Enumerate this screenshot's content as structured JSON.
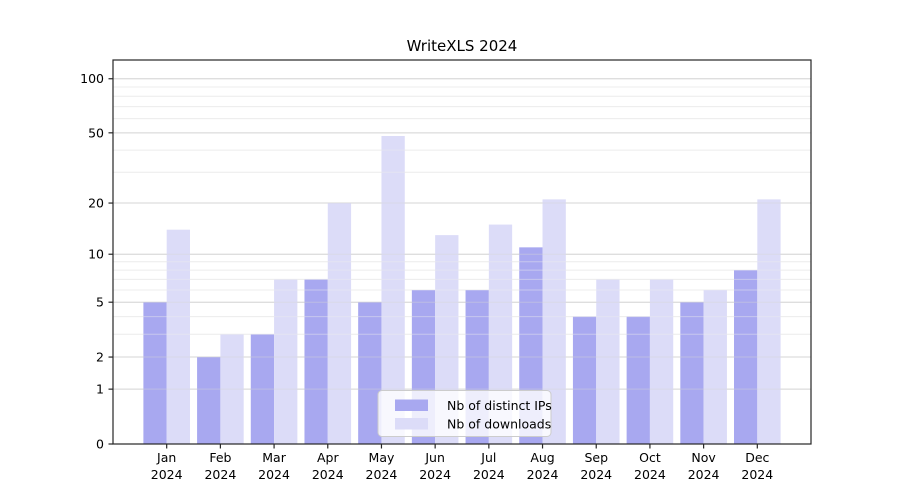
{
  "title": "WriteXLS 2024",
  "chart_data": {
    "type": "bar",
    "title": "WriteXLS 2024",
    "categories": [
      "Jan",
      "Feb",
      "Mar",
      "Apr",
      "May",
      "Jun",
      "Jul",
      "Aug",
      "Sep",
      "Oct",
      "Nov",
      "Dec"
    ],
    "x_label_second_line": "2024",
    "series": [
      {
        "name": "Nb of distinct IPs",
        "color": "#a8a8f0",
        "values": [
          5,
          2,
          3,
          7,
          5,
          6,
          6,
          11,
          4,
          4,
          5,
          8
        ]
      },
      {
        "name": "Nb of downloads",
        "color": "#dcdcf8",
        "values": [
          14,
          3,
          7,
          20,
          48,
          13,
          15,
          21,
          7,
          7,
          6,
          21
        ]
      }
    ],
    "yscale": "log1p",
    "ylim": [
      0,
      127
    ],
    "yticks_major": [
      0,
      1,
      2,
      5,
      10,
      20,
      50,
      100
    ],
    "yticks_minor": [
      3,
      4,
      6,
      7,
      8,
      9,
      30,
      40,
      60,
      70,
      80,
      90
    ],
    "grid": "on",
    "legend_position": "lower center",
    "xlabel": "",
    "ylabel": ""
  },
  "colors": {
    "series_ips": "#a8a8f0",
    "series_downloads": "#dcdcf8",
    "grid_major": "#d6d6d6",
    "grid_minor": "#ededed",
    "axis": "#262626",
    "text": "#000000",
    "legend_border": "#cccccc",
    "legend_bg_opacity": "0.8"
  }
}
